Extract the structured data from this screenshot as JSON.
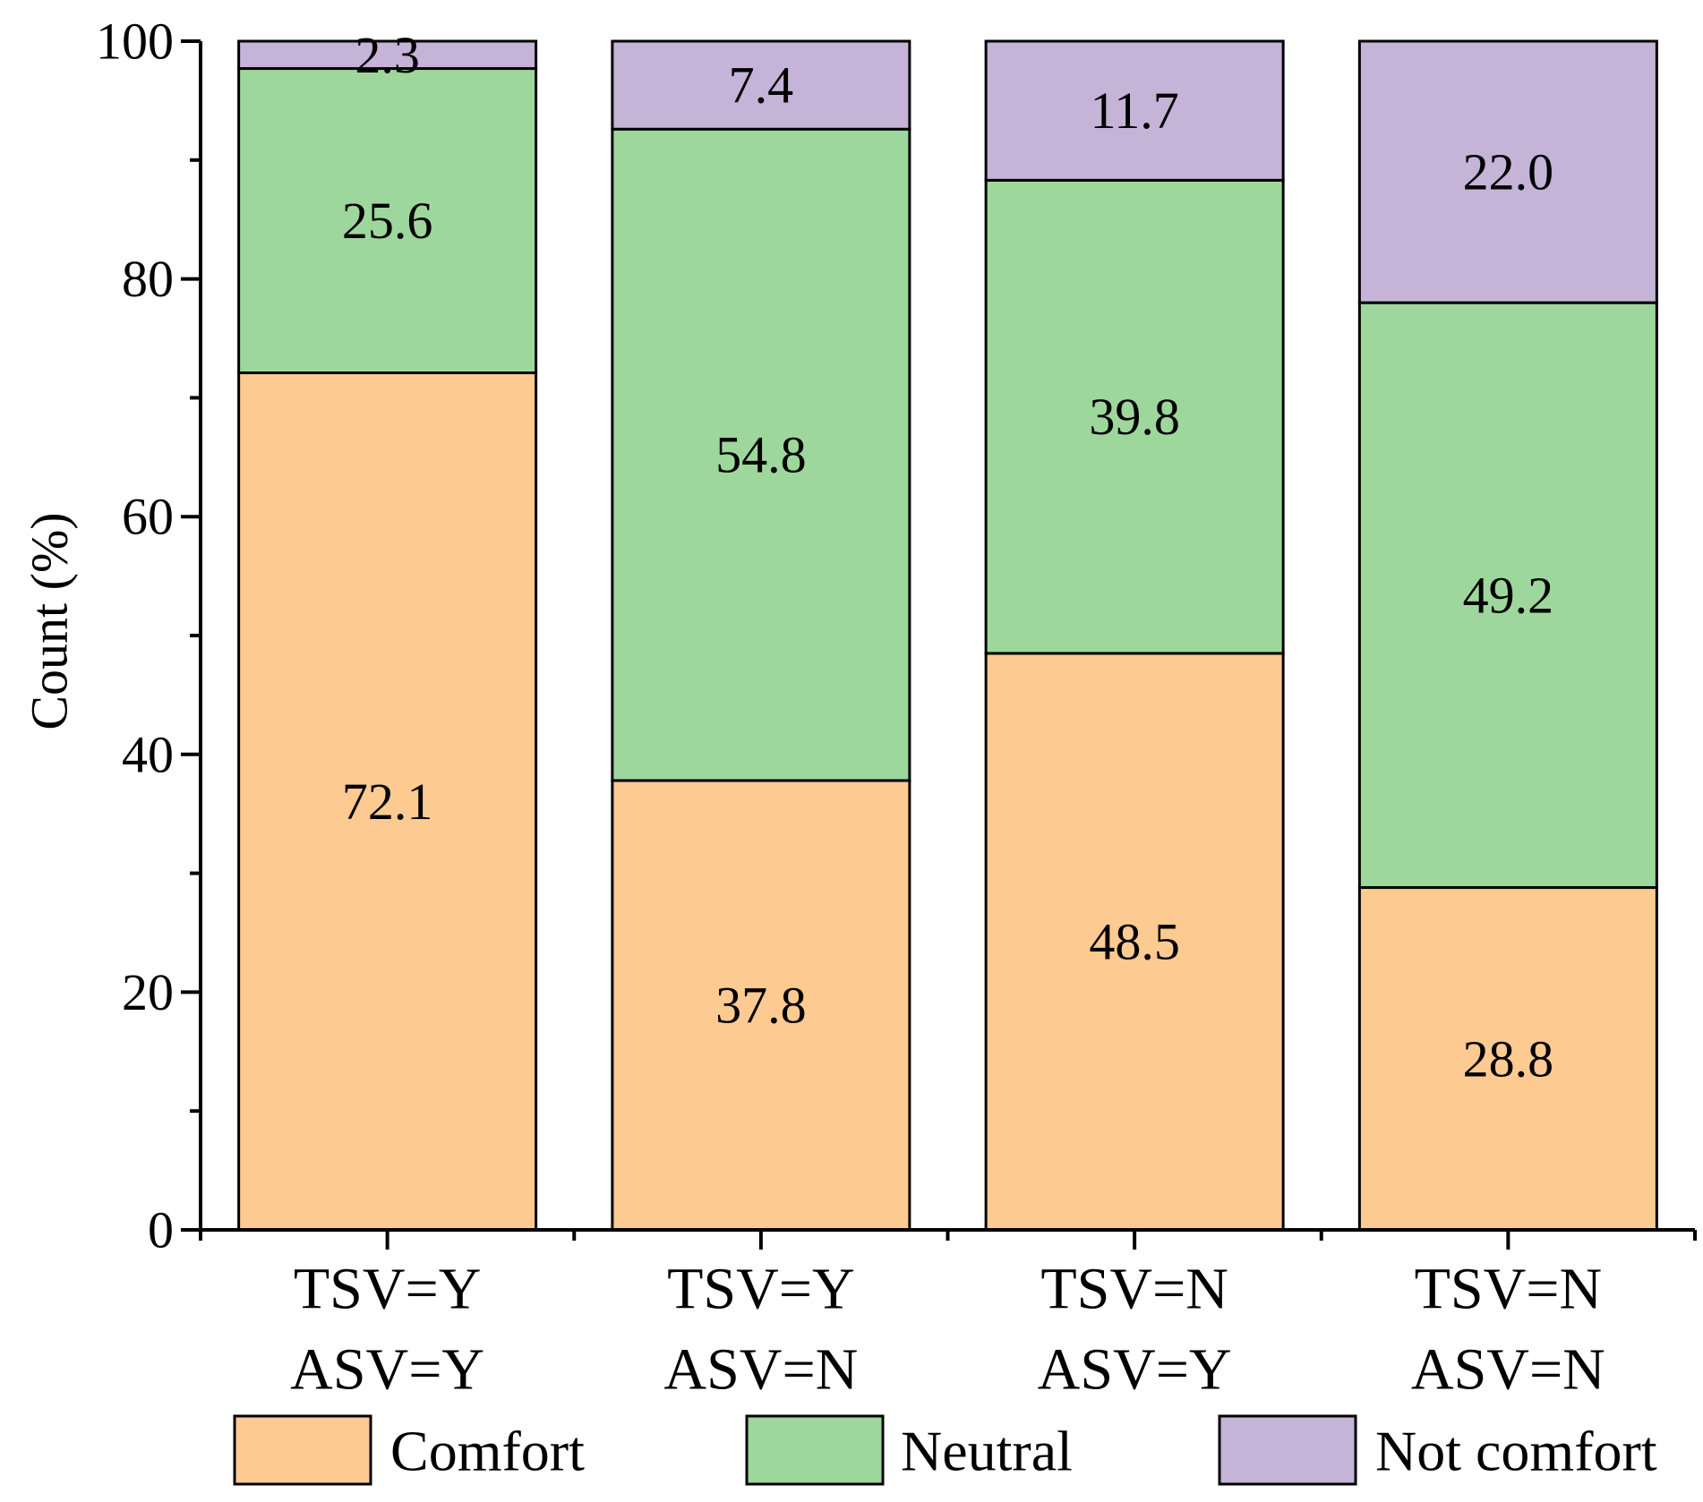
{
  "chart_data": {
    "type": "bar",
    "stacked": true,
    "title": "",
    "xlabel": "",
    "ylabel": "Count (%)",
    "ylim": [
      0,
      100
    ],
    "yticks": [
      0,
      20,
      40,
      60,
      80,
      100
    ],
    "yticklabels": [
      "0",
      "20",
      "40",
      "60",
      "80",
      "100"
    ],
    "categories": [
      [
        "TSV=Y",
        "ASV=Y"
      ],
      [
        "TSV=Y",
        "ASV=N"
      ],
      [
        "TSV=N",
        "ASV=Y"
      ],
      [
        "TSV=N",
        "ASV=N"
      ]
    ],
    "series": [
      {
        "name": "Comfort",
        "color": "#FDCA91",
        "values": [
          72.1,
          37.8,
          48.5,
          28.8
        ],
        "labels": [
          "72.1",
          "37.8",
          "48.5",
          "28.8"
        ]
      },
      {
        "name": "Neutral",
        "color": "#9ED79B",
        "values": [
          25.6,
          54.8,
          39.8,
          49.2
        ],
        "labels": [
          "25.6",
          "54.8",
          "39.8",
          "49.2"
        ]
      },
      {
        "name": "Not comfort",
        "color": "#C5B3D8",
        "values": [
          2.3,
          7.4,
          11.7,
          22.0
        ],
        "labels": [
          "2.3",
          "7.4",
          "11.7",
          "22.0"
        ]
      }
    ],
    "legend": {
      "position": "bottom",
      "entries": [
        "Comfort",
        "Neutral",
        "Not comfort"
      ]
    }
  }
}
